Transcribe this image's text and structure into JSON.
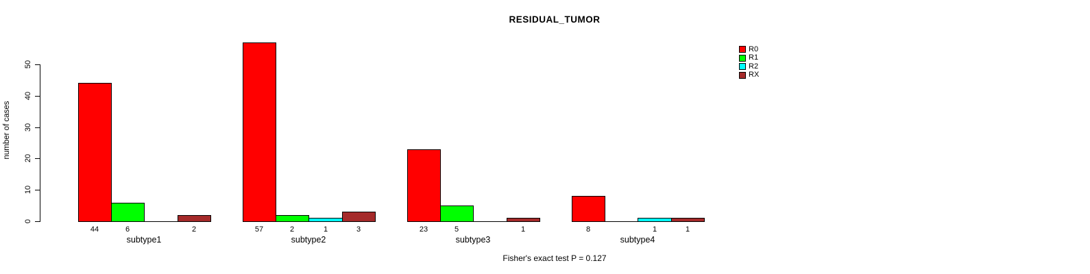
{
  "chart_data": {
    "type": "bar",
    "title": "RESIDUAL_TUMOR",
    "ylabel": "number of cases",
    "xlabel": "",
    "categories": [
      "subtype1",
      "subtype2",
      "subtype3",
      "subtype4"
    ],
    "series": [
      {
        "name": "R0",
        "color": "#FF0000",
        "values": [
          44,
          57,
          23,
          8
        ]
      },
      {
        "name": "R1",
        "color": "#00FF00",
        "values": [
          6,
          2,
          5,
          0
        ]
      },
      {
        "name": "R2",
        "color": "#00FFFF",
        "values": [
          0,
          1,
          0,
          1
        ]
      },
      {
        "name": "RX",
        "color": "#A52A2A",
        "values": [
          2,
          3,
          1,
          1
        ]
      }
    ],
    "bar_value_labels": [
      [
        "44",
        "6",
        "",
        "2"
      ],
      [
        "57",
        "2",
        "1",
        "3"
      ],
      [
        "23",
        "5",
        "",
        "1"
      ],
      [
        "8",
        "",
        "1",
        "1"
      ]
    ],
    "yticks": [
      0,
      10,
      20,
      30,
      40,
      50
    ],
    "ylim": [
      0,
      57
    ],
    "grid": false,
    "legend_position": "right",
    "annotation": "Fisher's exact test P = 0.127",
    "colors": {
      "background": "#FFFFFF",
      "axis": "#000000",
      "bar_border": "#000000"
    }
  }
}
